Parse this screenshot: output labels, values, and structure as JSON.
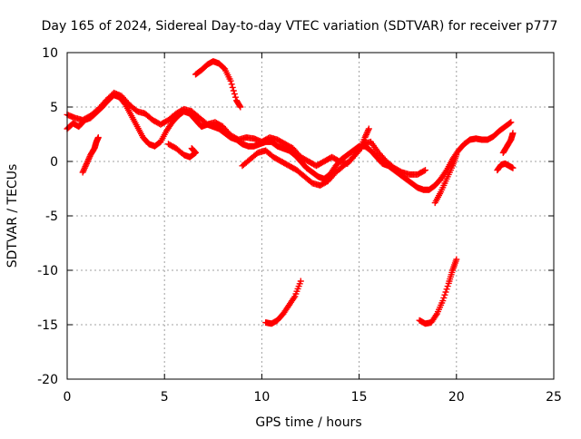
{
  "chart_data": {
    "type": "scatter",
    "title": "Day 165 of 2024, Sidereal Day-to-day VTEC variation (SDTVAR) for receiver p777",
    "xlabel": "GPS time / hours",
    "ylabel": "SDTVAR / TECUs",
    "xlim": [
      0,
      25
    ],
    "ylim": [
      -20,
      10
    ],
    "xticks": [
      0,
      5,
      10,
      15,
      20,
      25
    ],
    "yticks": [
      -20,
      -15,
      -10,
      -5,
      0,
      5,
      10
    ],
    "grid": true,
    "marker": "plus",
    "color": "#ff0000",
    "series": [
      {
        "name": "main-band",
        "values": [
          [
            0.0,
            3.0
          ],
          [
            0.3,
            3.5
          ],
          [
            0.6,
            3.2
          ],
          [
            0.9,
            3.8
          ],
          [
            1.2,
            4.0
          ],
          [
            1.5,
            4.5
          ],
          [
            1.8,
            5.0
          ],
          [
            2.1,
            5.6
          ],
          [
            2.4,
            6.1
          ],
          [
            2.7,
            5.9
          ],
          [
            3.0,
            5.2
          ],
          [
            3.3,
            4.2
          ],
          [
            3.6,
            3.2
          ],
          [
            3.9,
            2.2
          ],
          [
            4.2,
            1.6
          ],
          [
            4.5,
            1.4
          ],
          [
            4.8,
            1.8
          ],
          [
            5.1,
            2.8
          ],
          [
            5.4,
            3.6
          ],
          [
            5.7,
            4.2
          ],
          [
            6.0,
            4.6
          ],
          [
            6.3,
            4.4
          ],
          [
            6.6,
            3.8
          ],
          [
            6.9,
            3.2
          ],
          [
            7.2,
            3.4
          ],
          [
            7.5,
            3.2
          ],
          [
            7.8,
            3.0
          ],
          [
            8.1,
            2.6
          ],
          [
            8.4,
            2.2
          ],
          [
            8.7,
            2.0
          ],
          [
            9.0,
            1.6
          ],
          [
            9.3,
            1.4
          ],
          [
            9.6,
            1.4
          ],
          [
            9.9,
            1.6
          ],
          [
            10.2,
            1.8
          ],
          [
            10.5,
            1.8
          ],
          [
            10.8,
            1.4
          ],
          [
            11.1,
            1.2
          ],
          [
            11.4,
            1.0
          ],
          [
            11.7,
            0.6
          ],
          [
            12.0,
            0.0
          ],
          [
            12.3,
            -0.6
          ],
          [
            12.6,
            -1.0
          ],
          [
            12.9,
            -1.4
          ],
          [
            13.2,
            -1.6
          ],
          [
            13.5,
            -1.2
          ],
          [
            13.8,
            -0.4
          ],
          [
            14.1,
            0.2
          ],
          [
            14.4,
            0.6
          ],
          [
            14.7,
            1.0
          ],
          [
            15.0,
            1.4
          ],
          [
            15.3,
            1.4
          ],
          [
            15.6,
            1.0
          ],
          [
            15.9,
            0.4
          ],
          [
            16.2,
            -0.2
          ],
          [
            16.5,
            -0.4
          ],
          [
            16.8,
            -0.8
          ],
          [
            17.1,
            -1.2
          ],
          [
            17.4,
            -1.6
          ],
          [
            17.7,
            -2.0
          ],
          [
            18.0,
            -2.4
          ],
          [
            18.3,
            -2.6
          ],
          [
            18.6,
            -2.6
          ],
          [
            18.9,
            -2.2
          ],
          [
            19.2,
            -1.6
          ],
          [
            19.5,
            -0.8
          ],
          [
            19.8,
            0.2
          ],
          [
            20.1,
            1.0
          ],
          [
            20.4,
            1.6
          ],
          [
            20.7,
            2.0
          ],
          [
            21.0,
            2.1
          ],
          [
            21.3,
            2.0
          ],
          [
            21.6,
            2.0
          ],
          [
            21.9,
            2.3
          ],
          [
            22.2,
            2.8
          ],
          [
            22.5,
            3.2
          ],
          [
            22.8,
            3.6
          ]
        ]
      },
      {
        "name": "upper-band",
        "values": [
          [
            0.0,
            4.3
          ],
          [
            0.4,
            4.0
          ],
          [
            0.8,
            3.8
          ],
          [
            1.2,
            4.2
          ],
          [
            1.6,
            4.8
          ],
          [
            2.0,
            5.6
          ],
          [
            2.4,
            6.3
          ],
          [
            2.8,
            6.0
          ],
          [
            3.2,
            5.2
          ],
          [
            3.6,
            4.6
          ],
          [
            4.0,
            4.4
          ],
          [
            4.4,
            3.8
          ],
          [
            4.8,
            3.4
          ],
          [
            5.2,
            3.8
          ],
          [
            5.6,
            4.4
          ],
          [
            6.0,
            4.8
          ],
          [
            6.4,
            4.6
          ],
          [
            6.8,
            4.0
          ],
          [
            7.2,
            3.4
          ],
          [
            7.6,
            3.6
          ],
          [
            8.0,
            3.2
          ],
          [
            8.4,
            2.4
          ],
          [
            8.8,
            2.0
          ],
          [
            9.2,
            2.2
          ],
          [
            9.6,
            2.1
          ],
          [
            10.0,
            1.8
          ],
          [
            10.4,
            2.2
          ],
          [
            10.8,
            2.0
          ],
          [
            11.2,
            1.6
          ],
          [
            11.6,
            1.2
          ],
          [
            12.0,
            0.4
          ],
          [
            12.4,
            0.0
          ],
          [
            12.8,
            -0.4
          ],
          [
            13.2,
            0.0
          ],
          [
            13.6,
            0.4
          ],
          [
            14.0,
            0.0
          ],
          [
            14.4,
            -0.2
          ],
          [
            14.8,
            0.6
          ],
          [
            15.2,
            1.6
          ],
          [
            15.6,
            1.8
          ],
          [
            16.0,
            0.8
          ],
          [
            16.4,
            0.0
          ],
          [
            16.8,
            -0.6
          ],
          [
            17.2,
            -1.0
          ],
          [
            17.6,
            -1.2
          ],
          [
            18.0,
            -1.2
          ],
          [
            18.4,
            -0.8
          ]
        ]
      },
      {
        "name": "lower-band",
        "values": [
          [
            9.0,
            -0.4
          ],
          [
            9.4,
            0.2
          ],
          [
            9.8,
            0.8
          ],
          [
            10.2,
            1.0
          ],
          [
            10.6,
            0.4
          ],
          [
            11.0,
            0.0
          ],
          [
            11.4,
            -0.4
          ],
          [
            11.8,
            -0.8
          ],
          [
            12.2,
            -1.4
          ],
          [
            12.6,
            -2.0
          ],
          [
            13.0,
            -2.2
          ],
          [
            13.4,
            -1.8
          ],
          [
            13.8,
            -1.0
          ],
          [
            14.2,
            -0.4
          ],
          [
            14.6,
            0.2
          ],
          [
            15.0,
            1.0
          ],
          [
            15.3,
            2.2
          ],
          [
            15.5,
            3.0
          ]
        ]
      },
      {
        "name": "high-arc",
        "values": [
          [
            6.6,
            8.0
          ],
          [
            6.9,
            8.4
          ],
          [
            7.2,
            8.9
          ],
          [
            7.5,
            9.2
          ],
          [
            7.8,
            9.0
          ],
          [
            8.1,
            8.5
          ],
          [
            8.4,
            7.4
          ],
          [
            8.7,
            5.6
          ],
          [
            8.9,
            5.0
          ]
        ]
      },
      {
        "name": "short-rise-early",
        "values": [
          [
            0.8,
            -1.0
          ],
          [
            1.0,
            -0.2
          ],
          [
            1.2,
            0.6
          ],
          [
            1.4,
            1.2
          ],
          [
            1.5,
            1.8
          ],
          [
            1.6,
            2.2
          ]
        ]
      },
      {
        "name": "dip-6h",
        "values": [
          [
            5.2,
            1.6
          ],
          [
            5.6,
            1.2
          ],
          [
            6.0,
            0.6
          ],
          [
            6.3,
            0.4
          ],
          [
            6.6,
            0.8
          ],
          [
            6.4,
            1.2
          ]
        ]
      },
      {
        "name": "falling-late",
        "values": [
          [
            18.9,
            -3.8
          ],
          [
            19.2,
            -2.8
          ],
          [
            19.5,
            -1.6
          ],
          [
            19.8,
            -0.4
          ],
          [
            20.0,
            0.6
          ]
        ]
      },
      {
        "name": "end-tail",
        "values": [
          [
            22.1,
            -0.8
          ],
          [
            22.3,
            -0.3
          ],
          [
            22.5,
            -0.2
          ],
          [
            22.7,
            -0.4
          ],
          [
            22.9,
            -0.6
          ]
        ]
      },
      {
        "name": "end-rise",
        "values": [
          [
            22.4,
            0.8
          ],
          [
            22.6,
            1.4
          ],
          [
            22.8,
            2.0
          ],
          [
            22.9,
            2.6
          ]
        ]
      },
      {
        "name": "low-seg-10h",
        "values": [
          [
            10.2,
            -14.8
          ],
          [
            10.5,
            -14.9
          ],
          [
            10.8,
            -14.6
          ],
          [
            11.1,
            -14.0
          ],
          [
            11.4,
            -13.2
          ],
          [
            11.7,
            -12.4
          ],
          [
            12.0,
            -11.0
          ]
        ]
      },
      {
        "name": "low-seg-18h",
        "values": [
          [
            18.1,
            -14.6
          ],
          [
            18.4,
            -14.9
          ],
          [
            18.7,
            -14.8
          ],
          [
            19.0,
            -14.0
          ],
          [
            19.3,
            -12.8
          ],
          [
            19.6,
            -11.2
          ],
          [
            19.8,
            -10.0
          ],
          [
            20.0,
            -9.0
          ]
        ]
      }
    ]
  }
}
